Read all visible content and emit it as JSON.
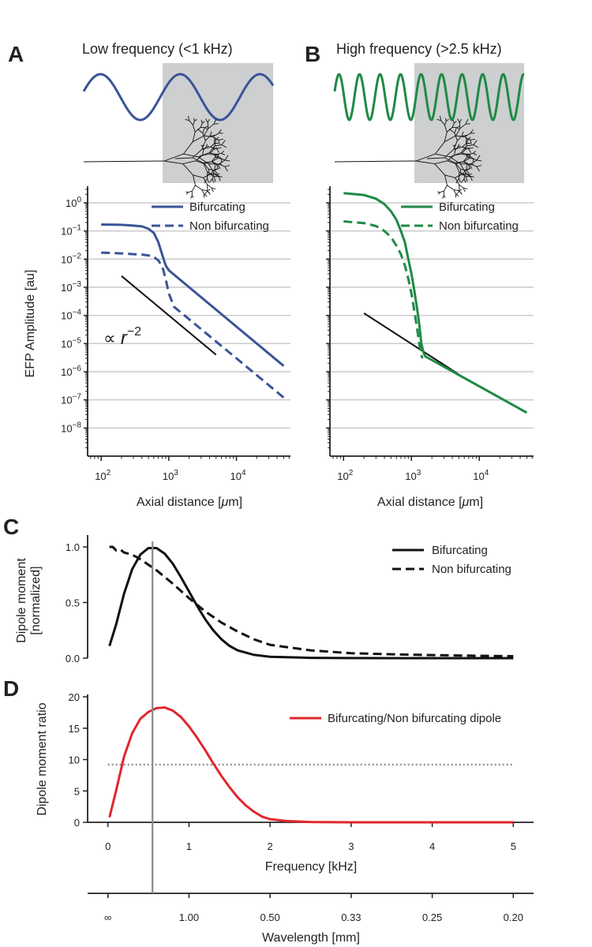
{
  "panels": {
    "A": {
      "letter": "A",
      "title": "Low frequency (<1 kHz)"
    },
    "B": {
      "letter": "B",
      "title": "High frequency (>2.5 kHz)"
    },
    "C": {
      "letter": "C"
    },
    "D": {
      "letter": "D"
    }
  },
  "colors": {
    "blue": "#3a5497",
    "green": "#1f8a45",
    "red": "#e0262d",
    "black": "#111111",
    "shade": "#cdcfd1",
    "dotted": "#8c8c8c",
    "marker": "#8a8a8a"
  },
  "chart_data": [
    {
      "id": "A",
      "type": "line",
      "title": "Low frequency (<1 kHz)",
      "xlabel_pre": "Axial distance [",
      "xlabel_unit": "μ",
      "xlabel_post": "m]",
      "ylabel": "EFP Amplitude [au]",
      "xscale": "log",
      "yscale": "log",
      "xlim": [
        63,
        63000
      ],
      "ylim": [
        1e-09,
        3
      ],
      "xticks": [
        100,
        1000,
        10000
      ],
      "xtick_exps": [
        "2",
        "3",
        "4"
      ],
      "yticks": [
        1e-08,
        1e-07,
        1e-06,
        1e-05,
        0.0001,
        0.001,
        0.01,
        0.1,
        1
      ],
      "ytick_exps": [
        "−8",
        "−7",
        "−6",
        "−5",
        "−4",
        "−3",
        "−2",
        "−1",
        "0"
      ],
      "grid": true,
      "legend": "top-right",
      "annotation": {
        "prefix": "∝ ",
        "var": "r",
        "exp": "−2"
      },
      "reference_line": {
        "x": [
          200,
          5000
        ],
        "y": [
          0.0025,
          4e-06
        ]
      },
      "series": [
        {
          "name": "Bifurcating",
          "style": "solid",
          "x": [
            100,
            200,
            300,
            400,
            500,
            600,
            700,
            800,
            900,
            1000,
            10000,
            50000
          ],
          "y": [
            0.17,
            0.165,
            0.155,
            0.145,
            0.12,
            0.085,
            0.04,
            0.014,
            0.006,
            0.004,
            4e-05,
            1.6e-06
          ]
        },
        {
          "name": "Non bifurcating",
          "style": "dashed",
          "x": [
            100,
            200,
            300,
            400,
            500,
            600,
            700,
            800,
            900,
            1000,
            1200,
            10000,
            50000
          ],
          "y": [
            0.017,
            0.016,
            0.015,
            0.0145,
            0.0135,
            0.012,
            0.009,
            0.0055,
            0.002,
            0.0006,
            0.0002,
            3e-06,
            1.2e-07
          ]
        }
      ]
    },
    {
      "id": "B",
      "type": "line",
      "title": "High frequency (>2.5 kHz)",
      "xlabel_pre": "Axial distance [",
      "xlabel_unit": "μ",
      "xlabel_post": "m]",
      "xscale": "log",
      "yscale": "log",
      "xlim": [
        63,
        63000
      ],
      "ylim": [
        1e-09,
        3
      ],
      "xticks": [
        100,
        1000,
        10000
      ],
      "xtick_exps": [
        "2",
        "3",
        "4"
      ],
      "grid": true,
      "legend": "top-right",
      "reference_line": {
        "x": [
          200,
          5000
        ],
        "y": [
          0.00012,
          8e-07
        ]
      },
      "series": [
        {
          "name": "Bifurcating",
          "style": "solid",
          "x": [
            100,
            200,
            300,
            400,
            500,
            600,
            700,
            800,
            900,
            1000,
            1100,
            1200,
            1300,
            1400,
            1500,
            1600,
            50000
          ],
          "y": [
            2.2,
            1.9,
            1.4,
            0.9,
            0.5,
            0.25,
            0.1,
            0.04,
            0.01,
            0.003,
            0.0008,
            0.0002,
            5e-05,
            1e-05,
            5e-06,
            3.5e-06,
            3.5e-08
          ]
        },
        {
          "name": "Non bifurcating",
          "style": "dashed",
          "x": [
            100,
            200,
            300,
            400,
            500,
            600,
            700,
            800,
            900,
            1000,
            1100,
            1200,
            1300,
            1400,
            1450
          ],
          "y": [
            0.22,
            0.19,
            0.15,
            0.1,
            0.06,
            0.03,
            0.015,
            0.006,
            0.002,
            0.0006,
            0.00015,
            4e-05,
            1e-05,
            4e-06,
            3e-06
          ]
        }
      ]
    },
    {
      "id": "C",
      "type": "line",
      "ylabel_1": "Dipole moment",
      "ylabel_2": "[normalized]",
      "xlim": [
        -0.25,
        5.25
      ],
      "ylim": [
        0,
        1.05
      ],
      "yticks": [
        0,
        0.5,
        1.0
      ],
      "ytick_labels": [
        "0.0",
        "0.5",
        "1.0"
      ],
      "legend": "top-right",
      "series": [
        {
          "name": "Bifurcating",
          "style": "solid",
          "x": [
            0.02,
            0.1,
            0.2,
            0.3,
            0.4,
            0.5,
            0.6,
            0.7,
            0.8,
            0.9,
            1.0,
            1.1,
            1.2,
            1.3,
            1.4,
            1.5,
            1.6,
            1.8,
            2.0,
            2.5,
            3.0,
            4.0,
            5.0
          ],
          "y": [
            0.11,
            0.3,
            0.58,
            0.8,
            0.93,
            0.99,
            0.99,
            0.94,
            0.85,
            0.73,
            0.6,
            0.47,
            0.35,
            0.25,
            0.17,
            0.11,
            0.07,
            0.03,
            0.012,
            0.003,
            0.001,
            0.0,
            0.0
          ]
        },
        {
          "name": "Non bifurcating",
          "style": "dashed",
          "x": [
            0.02,
            0.06,
            0.1,
            0.15,
            0.2,
            0.3,
            0.4,
            0.5,
            0.6,
            0.8,
            1.0,
            1.2,
            1.4,
            1.6,
            1.8,
            2.0,
            2.5,
            3.0,
            3.5,
            4.0,
            4.5,
            5.0
          ],
          "y": [
            1.0,
            1.0,
            0.97,
            0.98,
            0.95,
            0.93,
            0.89,
            0.84,
            0.79,
            0.67,
            0.54,
            0.42,
            0.32,
            0.24,
            0.17,
            0.12,
            0.07,
            0.045,
            0.035,
            0.028,
            0.022,
            0.018
          ]
        }
      ]
    },
    {
      "id": "D",
      "type": "line",
      "ylabel": "Dipole moment ratio",
      "xlabel": "Frequency [kHz]",
      "xlim": [
        -0.25,
        5.25
      ],
      "ylim": [
        0,
        20
      ],
      "xticks": [
        0,
        1,
        2,
        3,
        4,
        5
      ],
      "xtick_labels": [
        "0",
        "1",
        "2",
        "3",
        "4",
        "5"
      ],
      "yticks": [
        0,
        5,
        10,
        15,
        20
      ],
      "ytick_labels": [
        "0",
        "5",
        "10",
        "15",
        "20"
      ],
      "hline": 9.2,
      "legend": "top-right",
      "series": [
        {
          "name": "Bifurcating/Non bifurcating dipole",
          "style": "solid",
          "x": [
            0.02,
            0.1,
            0.2,
            0.3,
            0.4,
            0.5,
            0.6,
            0.7,
            0.8,
            0.9,
            1.0,
            1.1,
            1.2,
            1.3,
            1.4,
            1.5,
            1.6,
            1.7,
            1.8,
            1.9,
            2.0,
            2.2,
            2.5,
            3.0,
            5.0
          ],
          "y": [
            0.8,
            5.0,
            10.5,
            14.2,
            16.5,
            17.6,
            18.2,
            18.3,
            17.8,
            16.8,
            15.3,
            13.5,
            11.5,
            9.4,
            7.4,
            5.6,
            4.0,
            2.7,
            1.7,
            0.9,
            0.5,
            0.2,
            0.05,
            0.0,
            0.0
          ]
        }
      ],
      "wavelength_axis": {
        "label": "Wavelength [mm]",
        "tick_freqs": [
          0,
          1,
          2,
          3,
          4,
          5
        ],
        "tick_labels": [
          "∞",
          "1.00",
          "0.50",
          "0.33",
          "0.25",
          "0.20"
        ]
      },
      "marker_line_freq": 0.55
    }
  ]
}
